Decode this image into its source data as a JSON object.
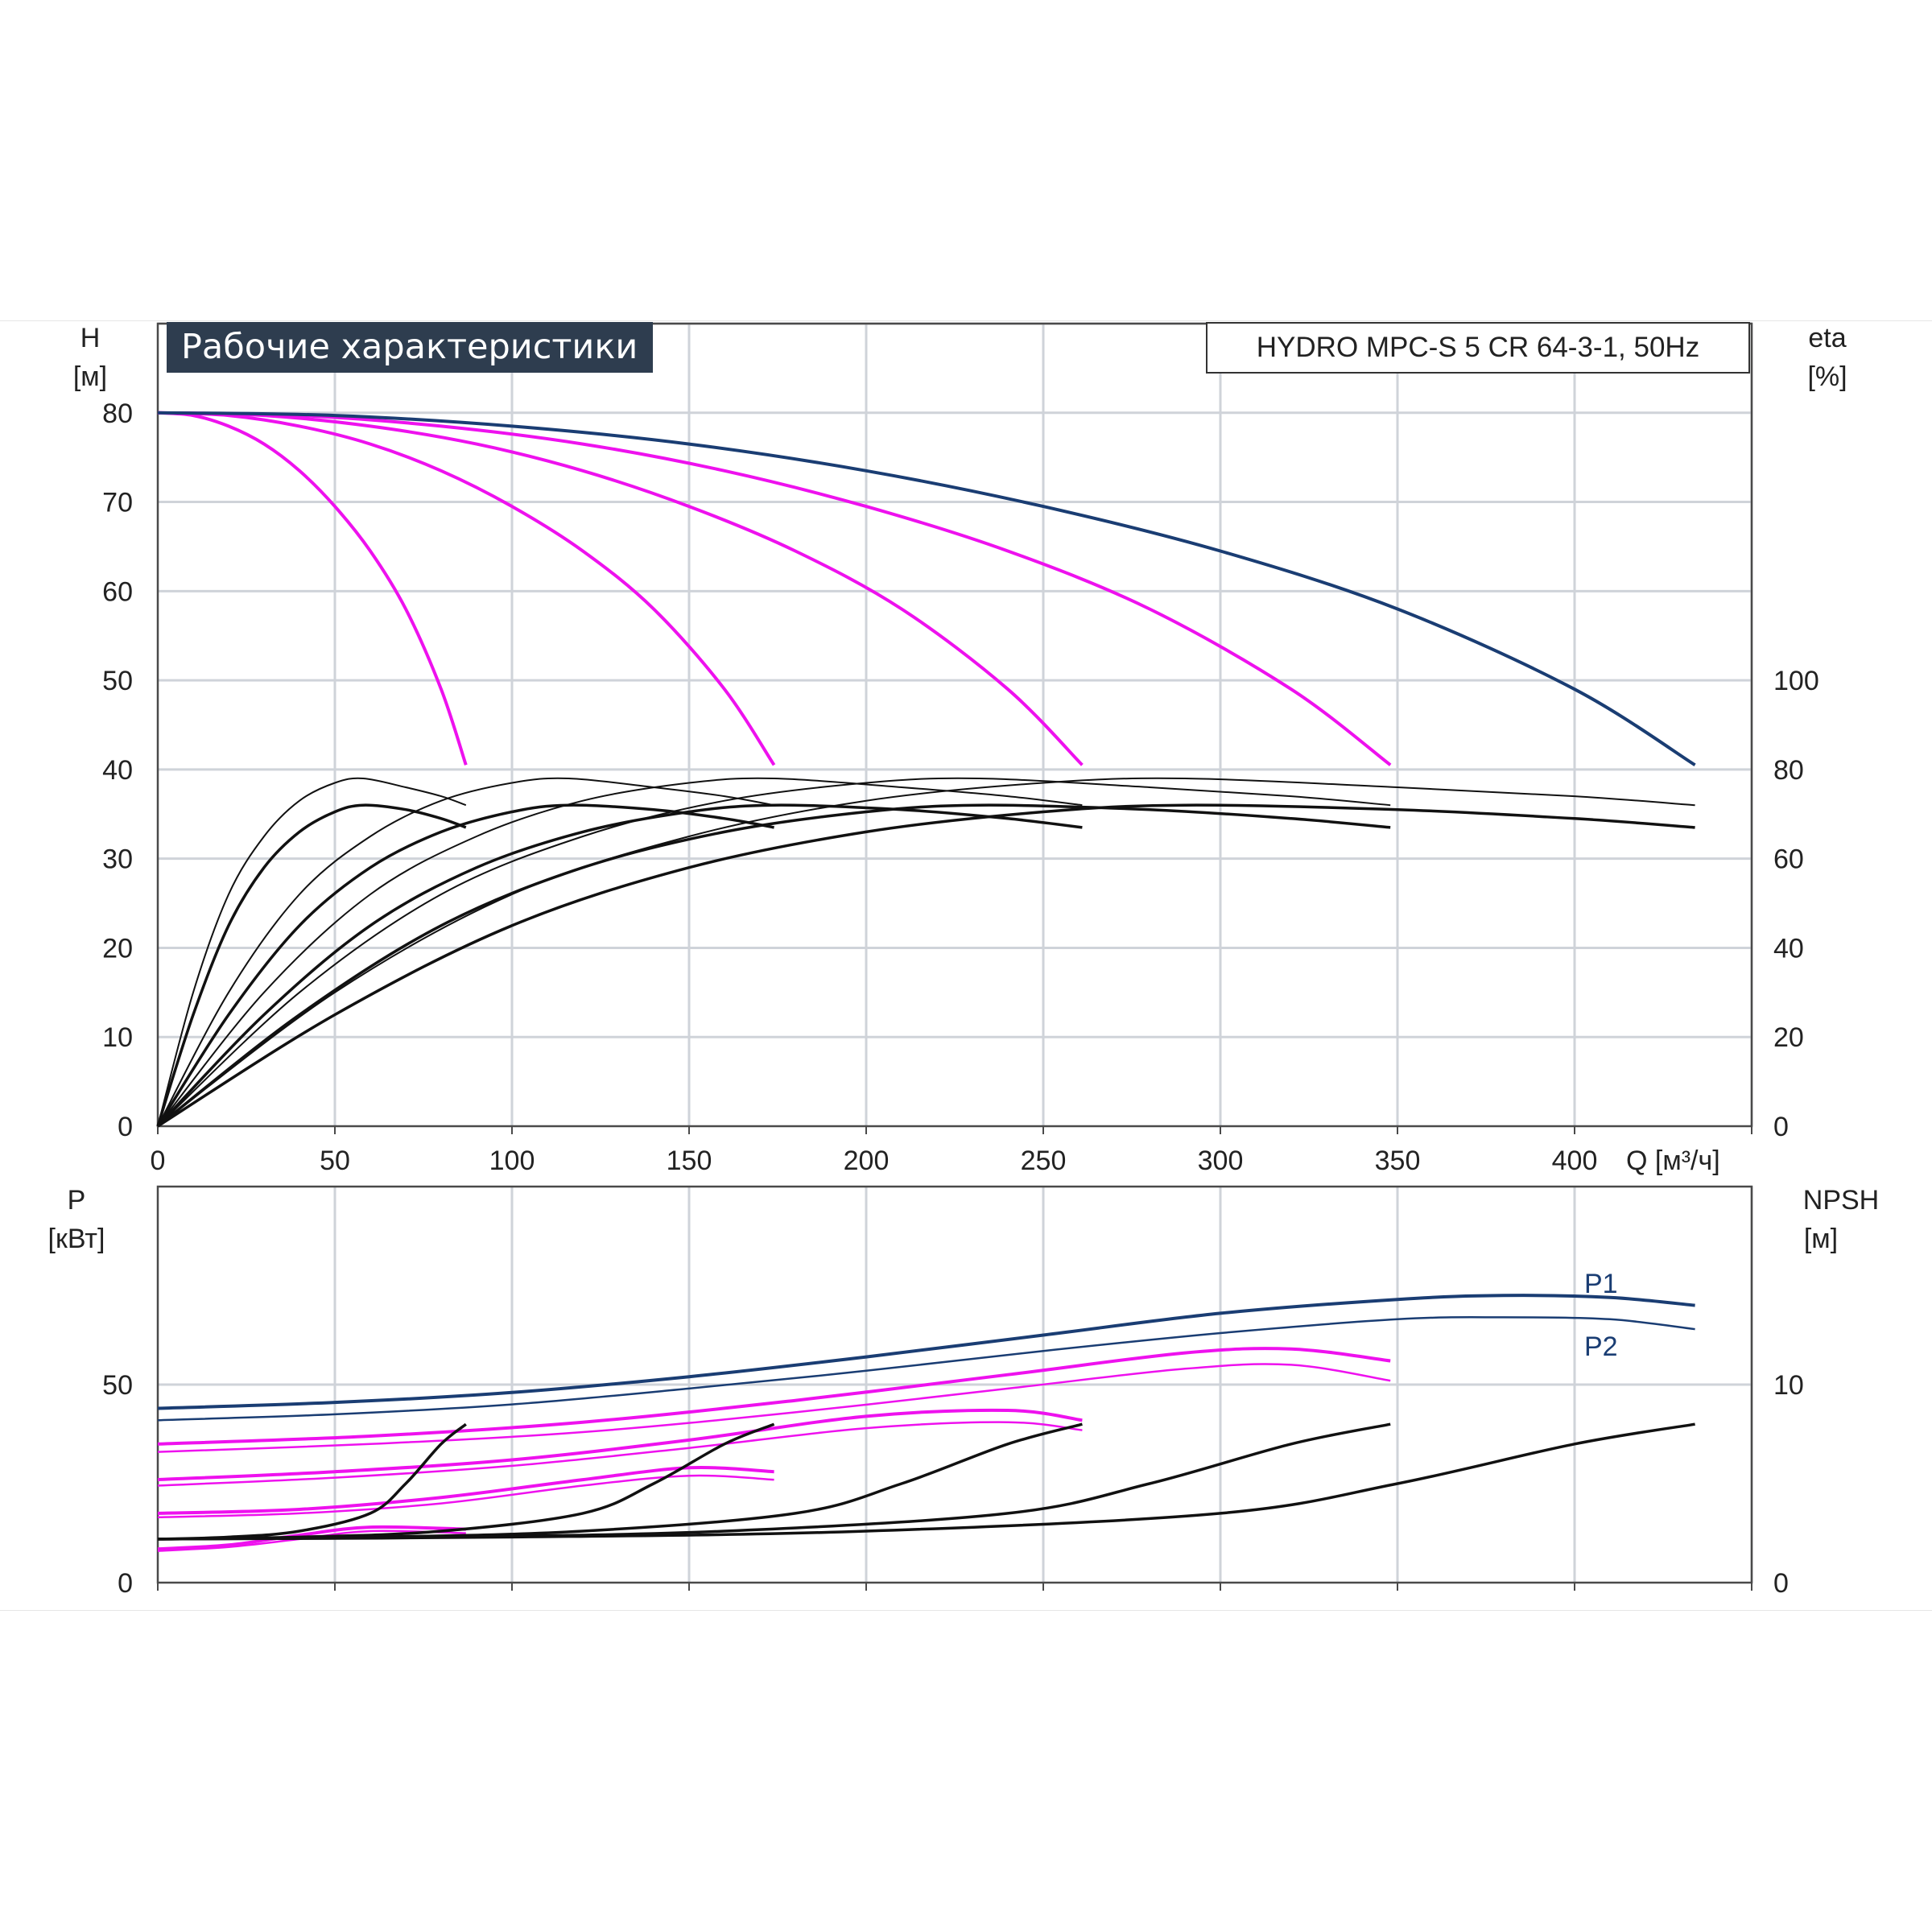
{
  "header": {
    "title": "Рабочие характеристики",
    "model": "HYDRO MPC-S 5 CR 64-3-1, 50Hz"
  },
  "chart_data": [
    {
      "type": "line",
      "panel": "head-efficiency",
      "y_label_left": "H",
      "y_unit_left": "[м]",
      "y_label_right": "eta",
      "y_unit_right": "[%]",
      "x_label": "Q [м³/ч]",
      "xlim": [
        0,
        450
      ],
      "ylim_left": [
        0,
        90
      ],
      "ylim_right": [
        0,
        100
      ],
      "x_ticks": [
        "0",
        "50",
        "100",
        "150",
        "200",
        "250",
        "300",
        "350",
        "400"
      ],
      "y_ticks_left": [
        "0",
        "10",
        "20",
        "30",
        "40",
        "50",
        "60",
        "70",
        "80"
      ],
      "y_ticks_right": [
        "0",
        "20",
        "40",
        "60",
        "80",
        "100"
      ],
      "grid": true,
      "head_curves": [
        {
          "pumps": 1,
          "color": "#ee11ee",
          "x": [
            0,
            10,
            20,
            30,
            40,
            50,
            60,
            70,
            80,
            87
          ],
          "y": [
            80,
            79.7,
            78.5,
            76.5,
            73.5,
            69.5,
            64.5,
            58,
            49,
            40.5
          ]
        },
        {
          "pumps": 2,
          "color": "#ee11ee",
          "x": [
            0,
            20,
            40,
            60,
            80,
            100,
            120,
            140,
            160,
            174
          ],
          "y": [
            80,
            79.7,
            78.5,
            76.5,
            73.5,
            69.5,
            64.5,
            58,
            49,
            40.5
          ]
        },
        {
          "pumps": 3,
          "color": "#ee11ee",
          "x": [
            0,
            30,
            60,
            90,
            120,
            150,
            180,
            210,
            240,
            261
          ],
          "y": [
            80,
            79.7,
            78.5,
            76.5,
            73.5,
            69.5,
            64.5,
            58,
            49,
            40.5
          ]
        },
        {
          "pumps": 4,
          "color": "#ee11ee",
          "x": [
            0,
            40,
            80,
            120,
            160,
            200,
            240,
            280,
            320,
            348
          ],
          "y": [
            80,
            79.7,
            78.5,
            76.5,
            73.5,
            69.5,
            64.5,
            58,
            49,
            40.5
          ]
        },
        {
          "pumps": 5,
          "color": "#1a3d73",
          "x": [
            0,
            50,
            100,
            150,
            200,
            250,
            300,
            350,
            400,
            434
          ],
          "y": [
            80,
            79.7,
            78.5,
            76.5,
            73.5,
            69.5,
            64.5,
            58,
            49,
            40.5
          ]
        }
      ],
      "efficiency_curves": [
        {
          "pumps": 1,
          "x": [
            0,
            10,
            20,
            30,
            40,
            50,
            58,
            70,
            80,
            87
          ],
          "eta": [
            0,
            30,
            52,
            65,
            73,
            77,
            78,
            76,
            74,
            72
          ]
        },
        {
          "pumps": 2,
          "x": [
            0,
            20,
            40,
            60,
            80,
            100,
            116,
            140,
            160,
            174
          ],
          "eta": [
            0,
            30,
            52,
            65,
            73,
            77,
            78,
            76,
            74,
            72
          ]
        },
        {
          "pumps": 3,
          "x": [
            0,
            30,
            60,
            90,
            120,
            150,
            174,
            210,
            240,
            261
          ],
          "eta": [
            0,
            30,
            52,
            65,
            73,
            77,
            78,
            76,
            74,
            72
          ]
        },
        {
          "pumps": 4,
          "x": [
            0,
            40,
            80,
            120,
            160,
            200,
            232,
            280,
            320,
            348
          ],
          "eta": [
            0,
            30,
            52,
            65,
            73,
            77,
            78,
            76,
            74,
            72
          ]
        },
        {
          "pumps": 5,
          "x": [
            0,
            50,
            100,
            150,
            200,
            250,
            290,
            350,
            400,
            434
          ],
          "eta": [
            0,
            30,
            52,
            65,
            73,
            77,
            78,
            76,
            74,
            72
          ]
        },
        {
          "pumps": 1,
          "x": [
            0,
            10,
            20,
            30,
            40,
            50,
            58,
            70,
            80,
            87
          ],
          "eta": [
            0,
            25,
            45,
            58,
            66,
            70.5,
            72,
            71,
            69,
            67
          ]
        },
        {
          "pumps": 2,
          "x": [
            0,
            20,
            40,
            60,
            80,
            100,
            116,
            140,
            160,
            174
          ],
          "eta": [
            0,
            25,
            45,
            58,
            66,
            70.5,
            72,
            71,
            69,
            67
          ]
        },
        {
          "pumps": 3,
          "x": [
            0,
            30,
            60,
            90,
            120,
            150,
            174,
            210,
            240,
            261
          ],
          "eta": [
            0,
            25,
            45,
            58,
            66,
            70.5,
            72,
            71,
            69,
            67
          ]
        },
        {
          "pumps": 4,
          "x": [
            0,
            40,
            80,
            120,
            160,
            200,
            232,
            280,
            320,
            348
          ],
          "eta": [
            0,
            25,
            45,
            58,
            66,
            70.5,
            72,
            71,
            69,
            67
          ]
        },
        {
          "pumps": 5,
          "x": [
            0,
            50,
            100,
            150,
            200,
            250,
            290,
            350,
            400,
            434
          ],
          "eta": [
            0,
            25,
            45,
            58,
            66,
            70.5,
            72,
            71,
            69,
            67
          ]
        }
      ]
    },
    {
      "type": "line",
      "panel": "power-npsh",
      "y_label_left": "P",
      "y_unit_left": "[кВт]",
      "y_label_right": "NPSH",
      "y_unit_right": "[м]",
      "xlim": [
        0,
        450
      ],
      "ylim_left": [
        0,
        100
      ],
      "ylim_right": [
        0,
        20
      ],
      "y_ticks_left": [
        "0",
        "50"
      ],
      "y_ticks_right": [
        "0",
        "10"
      ],
      "grid": true,
      "power_labels": [
        "P1",
        "P2"
      ],
      "power_curves": [
        {
          "pumps": 5,
          "kind": "P1",
          "color": "#1a3d73",
          "x": [
            0,
            50,
            100,
            150,
            200,
            250,
            300,
            350,
            380,
            410,
            434
          ],
          "y": [
            44,
            45.5,
            48,
            52,
            57,
            62.5,
            68,
            71.5,
            72.5,
            72,
            70
          ]
        },
        {
          "pumps": 5,
          "kind": "P2",
          "color": "#1a3d73",
          "x": [
            0,
            50,
            100,
            150,
            200,
            250,
            300,
            350,
            380,
            410,
            434
          ],
          "y": [
            41,
            42.5,
            45,
            49,
            53.5,
            58.5,
            63,
            66.5,
            67,
            66.5,
            64
          ]
        },
        {
          "pumps": 4,
          "kind": "P1",
          "color": "#ee11ee",
          "x": [
            0,
            60,
            120,
            180,
            240,
            290,
            320,
            348
          ],
          "y": [
            35,
            37,
            40.5,
            46,
            52.5,
            58,
            59,
            56
          ]
        },
        {
          "pumps": 4,
          "kind": "P2",
          "color": "#ee11ee",
          "x": [
            0,
            60,
            120,
            180,
            240,
            290,
            320,
            348
          ],
          "y": [
            33,
            35,
            38,
            43,
            49,
            54,
            55,
            51
          ]
        },
        {
          "pumps": 3,
          "kind": "P1",
          "color": "#ee11ee",
          "x": [
            0,
            50,
            100,
            150,
            200,
            240,
            261
          ],
          "y": [
            26,
            28,
            31,
            36,
            42,
            43.5,
            41
          ]
        },
        {
          "pumps": 3,
          "kind": "P2",
          "color": "#ee11ee",
          "x": [
            0,
            50,
            100,
            150,
            200,
            240,
            261
          ],
          "y": [
            24.5,
            26.5,
            29.5,
            34,
            39,
            40.5,
            38.5
          ]
        },
        {
          "pumps": 2,
          "kind": "P1",
          "color": "#ee11ee",
          "x": [
            0,
            40,
            80,
            120,
            150,
            174
          ],
          "y": [
            17.5,
            18.5,
            21.5,
            26,
            29,
            28
          ]
        },
        {
          "pumps": 2,
          "kind": "P2",
          "color": "#ee11ee",
          "x": [
            0,
            40,
            80,
            120,
            150,
            174
          ],
          "y": [
            16.5,
            17.5,
            20,
            24.5,
            27,
            26
          ]
        },
        {
          "pumps": 1,
          "kind": "P1",
          "color": "#ee11ee",
          "x": [
            0,
            20,
            40,
            60,
            87
          ],
          "y": [
            8.5,
            9.5,
            12,
            14,
            13.5
          ]
        },
        {
          "pumps": 1,
          "kind": "P2",
          "color": "#ee11ee",
          "x": [
            0,
            20,
            40,
            60,
            87
          ],
          "y": [
            8,
            9,
            11,
            13,
            12.5
          ]
        }
      ],
      "npsh_curves": [
        {
          "pumps": 1,
          "x": [
            0,
            20,
            40,
            60,
            70,
            80,
            87
          ],
          "y": [
            2.2,
            2.3,
            2.6,
            3.5,
            5,
            7,
            8
          ]
        },
        {
          "pumps": 2,
          "x": [
            0,
            40,
            80,
            120,
            140,
            160,
            174
          ],
          "y": [
            2.2,
            2.3,
            2.6,
            3.5,
            5,
            7,
            8
          ]
        },
        {
          "pumps": 3,
          "x": [
            0,
            60,
            120,
            180,
            210,
            240,
            261
          ],
          "y": [
            2.2,
            2.3,
            2.6,
            3.5,
            5,
            7,
            8
          ]
        },
        {
          "pumps": 4,
          "x": [
            0,
            80,
            160,
            240,
            280,
            320,
            348
          ],
          "y": [
            2.2,
            2.3,
            2.6,
            3.5,
            5,
            7,
            8
          ]
        },
        {
          "pumps": 5,
          "x": [
            0,
            100,
            200,
            300,
            350,
            400,
            434
          ],
          "y": [
            2.2,
            2.3,
            2.6,
            3.5,
            5,
            7,
            8
          ]
        }
      ]
    }
  ]
}
